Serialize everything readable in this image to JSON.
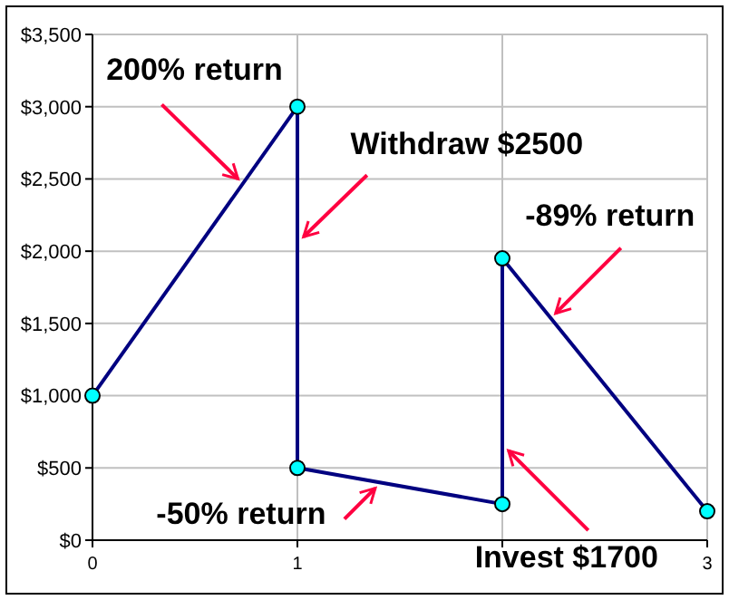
{
  "chart_data": {
    "type": "line",
    "x": [
      0,
      1,
      1,
      2,
      2,
      3
    ],
    "series": [
      {
        "color": "#000080",
        "values": [
          1000,
          3000,
          500,
          250,
          1950,
          200
        ]
      }
    ],
    "xlim": [
      0,
      3
    ],
    "xticks": [
      0,
      1,
      {
        "value": 2,
        "label": null
      },
      3
    ],
    "ylim": [
      0,
      3500
    ],
    "yticks": [
      {
        "value": 0,
        "label": "$0"
      },
      {
        "value": 500,
        "label": "$500"
      },
      {
        "value": 1000,
        "label": "$1,000"
      },
      {
        "value": 1500,
        "label": "$1,500"
      },
      {
        "value": 2000,
        "label": "$2,000"
      },
      {
        "value": 2500,
        "label": "$2,500"
      },
      {
        "value": 3000,
        "label": "$3,000"
      },
      {
        "value": 3500,
        "label": "$3,500"
      }
    ],
    "grid": true,
    "marker": "circle",
    "line_style": "solid",
    "legend": false,
    "annotations": [
      {
        "text": "200% return",
        "x": 0.71,
        "y": 2500
      },
      {
        "text": "Withdraw $2500",
        "x": 1.03,
        "y": 2100
      },
      {
        "text": "-89% return",
        "x": 2.26,
        "y": 1570
      },
      {
        "text": "-50% return",
        "x": 1.38,
        "y": 360
      },
      {
        "text": "Invest $1700",
        "x": 2.03,
        "y": 620
      }
    ]
  }
}
